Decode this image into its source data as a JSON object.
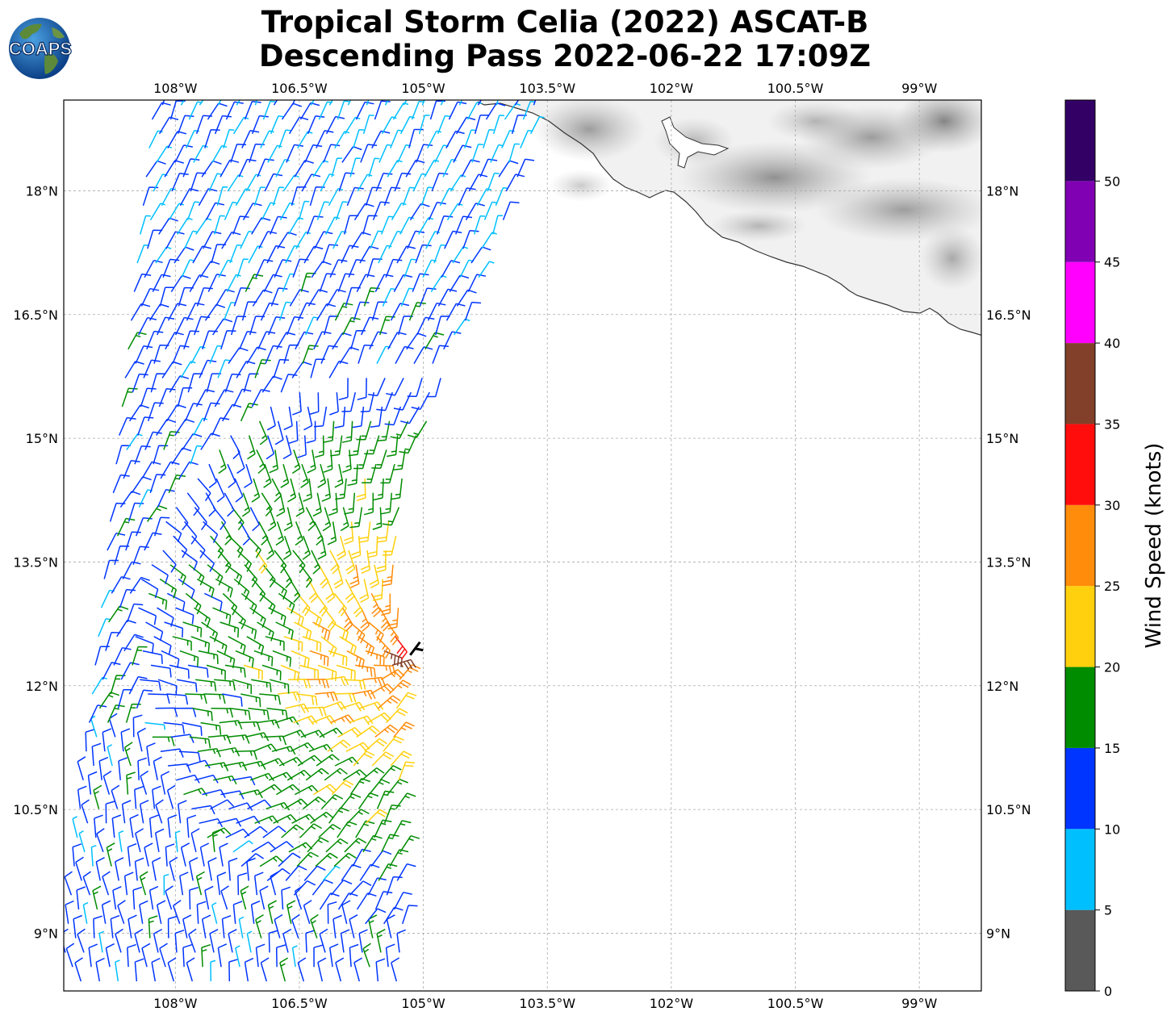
{
  "logo": {
    "text": "COAPS",
    "icon": "globe-logo-icon"
  },
  "title": {
    "line1": "Tropical Storm Celia (2022) ASCAT-B",
    "line2": "Descending Pass 2022-06-22 17:09Z"
  },
  "map": {
    "lon_labels": [
      "108°W",
      "106.5°W",
      "105°W",
      "103.5°W",
      "102°W",
      "100.5°W",
      "99°W"
    ],
    "lat_labels": [
      "18°N",
      "16.5°N",
      "15°N",
      "13.5°N",
      "12°N",
      "10.5°N",
      "9°N"
    ],
    "lon_values": [
      -108,
      -106.5,
      -105,
      -103.5,
      -102,
      -100.5,
      -99
    ],
    "lat_values": [
      18,
      16.5,
      15,
      13.5,
      12,
      10.5,
      9
    ],
    "extent": {
      "lon_min": -109.35,
      "lon_max": -98.25,
      "lat_min": 8.3,
      "lat_max": 19.1
    },
    "storm_center": {
      "lon": -105.1,
      "lat": 12.45
    },
    "gridlines": true
  },
  "colorbar": {
    "label": "Wind Speed (knots)",
    "tick_labels": [
      "0",
      "5",
      "10",
      "15",
      "20",
      "25",
      "30",
      "35",
      "40",
      "45",
      "50"
    ],
    "bins": [
      {
        "min": 0,
        "max": 5,
        "color": "#595959"
      },
      {
        "min": 5,
        "max": 10,
        "color": "#00bfff"
      },
      {
        "min": 10,
        "max": 15,
        "color": "#0035ff"
      },
      {
        "min": 15,
        "max": 20,
        "color": "#008c00"
      },
      {
        "min": 20,
        "max": 25,
        "color": "#ffd00d"
      },
      {
        "min": 25,
        "max": 30,
        "color": "#ff8c0a"
      },
      {
        "min": 30,
        "max": 35,
        "color": "#ff0d0d"
      },
      {
        "min": 35,
        "max": 40,
        "color": "#82402a"
      },
      {
        "min": 40,
        "max": 45,
        "color": "#ff00ff"
      },
      {
        "min": 45,
        "max": 50,
        "color": "#8000b3"
      },
      {
        "min": 50,
        "max": 55,
        "color": "#330066"
      }
    ]
  }
}
